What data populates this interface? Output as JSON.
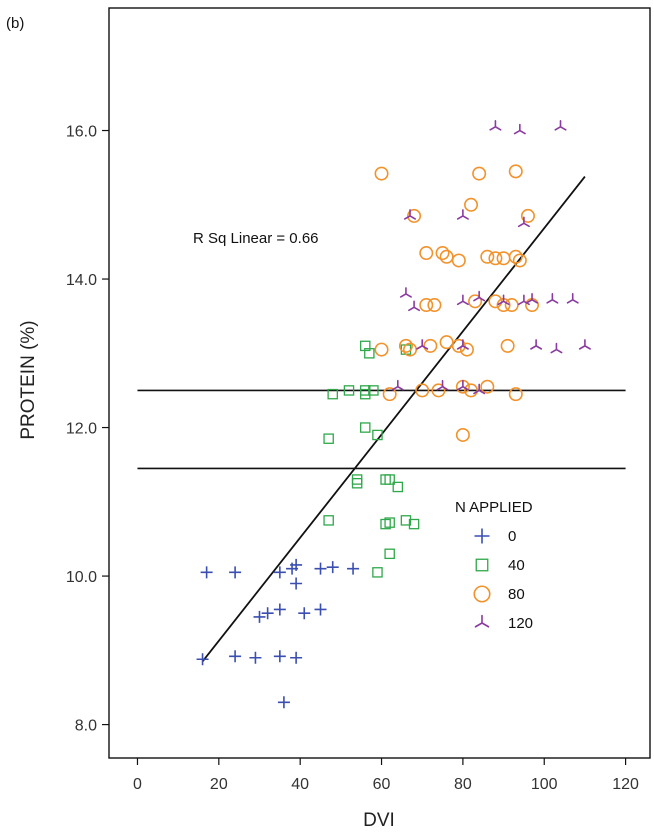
{
  "panel_label": "(b)",
  "annotation": "R Sq Linear = 0.66",
  "chart_data": {
    "type": "scatter",
    "title": "",
    "xlabel": "DVI",
    "ylabel": "PROTEIN (%)",
    "xlim": [
      -7,
      126
    ],
    "ylim": [
      7.55,
      17.65
    ],
    "xticks": [
      0,
      20,
      40,
      60,
      80,
      100,
      120
    ],
    "xtick_labels": [
      "0",
      "20",
      "40",
      "60",
      "80",
      "100",
      "120"
    ],
    "yticks": [
      8.0,
      10.0,
      12.0,
      14.0,
      16.0
    ],
    "ytick_labels": [
      "8.0",
      "10.0",
      "12.0",
      "14.0",
      "16.0"
    ],
    "grid": false,
    "legend": {
      "title": "N APPLIED",
      "placement": "right-middle"
    },
    "series": [
      {
        "name": "0",
        "marker": "plus",
        "color": "#3a4fb0",
        "points": [
          [
            17,
            10.05
          ],
          [
            24,
            10.05
          ],
          [
            35,
            10.05
          ],
          [
            38,
            10.1
          ],
          [
            39,
            9.9
          ],
          [
            39,
            10.15
          ],
          [
            45,
            10.1
          ],
          [
            48,
            10.12
          ],
          [
            53,
            10.1
          ],
          [
            30,
            9.45
          ],
          [
            32,
            9.5
          ],
          [
            35,
            9.55
          ],
          [
            41,
            9.5
          ],
          [
            45,
            9.55
          ],
          [
            16,
            8.88
          ],
          [
            24,
            8.92
          ],
          [
            29,
            8.9
          ],
          [
            35,
            8.92
          ],
          [
            39,
            8.9
          ],
          [
            36,
            8.3
          ]
        ]
      },
      {
        "name": "40",
        "marker": "square",
        "color": "#2fa84a",
        "points": [
          [
            56,
            13.1
          ],
          [
            57,
            13.0
          ],
          [
            66,
            13.05
          ],
          [
            52,
            12.5
          ],
          [
            56,
            12.5
          ],
          [
            56,
            12.45
          ],
          [
            58,
            12.5
          ],
          [
            48,
            12.45
          ],
          [
            56,
            12.0
          ],
          [
            59,
            11.9
          ],
          [
            47,
            11.85
          ],
          [
            54,
            11.3
          ],
          [
            54,
            11.25
          ],
          [
            61,
            11.3
          ],
          [
            62,
            11.3
          ],
          [
            64,
            11.2
          ],
          [
            47,
            10.75
          ],
          [
            61,
            10.7
          ],
          [
            62,
            10.72
          ],
          [
            66,
            10.75
          ],
          [
            68,
            10.7
          ],
          [
            62,
            10.3
          ],
          [
            59,
            10.05
          ]
        ]
      },
      {
        "name": "80",
        "marker": "circle",
        "color": "#f2922b",
        "points": [
          [
            60,
            15.42
          ],
          [
            84,
            15.42
          ],
          [
            93,
            15.45
          ],
          [
            68,
            14.85
          ],
          [
            82,
            15.0
          ],
          [
            96,
            14.85
          ],
          [
            71,
            14.35
          ],
          [
            75,
            14.35
          ],
          [
            76,
            14.3
          ],
          [
            79,
            14.25
          ],
          [
            86,
            14.3
          ],
          [
            88,
            14.28
          ],
          [
            90,
            14.28
          ],
          [
            93,
            14.3
          ],
          [
            94,
            14.25
          ],
          [
            71,
            13.65
          ],
          [
            73,
            13.65
          ],
          [
            83,
            13.7
          ],
          [
            88,
            13.7
          ],
          [
            90,
            13.65
          ],
          [
            92,
            13.65
          ],
          [
            97,
            13.65
          ],
          [
            60,
            13.05
          ],
          [
            66,
            13.1
          ],
          [
            67,
            13.05
          ],
          [
            72,
            13.1
          ],
          [
            76,
            13.15
          ],
          [
            79,
            13.1
          ],
          [
            81,
            13.05
          ],
          [
            91,
            13.1
          ],
          [
            62,
            12.45
          ],
          [
            70,
            12.5
          ],
          [
            74,
            12.5
          ],
          [
            80,
            12.55
          ],
          [
            82,
            12.5
          ],
          [
            86,
            12.55
          ],
          [
            93,
            12.45
          ],
          [
            80,
            11.9
          ]
        ]
      },
      {
        "name": "120",
        "marker": "tri",
        "color": "#8a3aa0",
        "points": [
          [
            88,
            16.05
          ],
          [
            94,
            16.0
          ],
          [
            104,
            16.05
          ],
          [
            67,
            14.85
          ],
          [
            80,
            14.85
          ],
          [
            95,
            14.75
          ],
          [
            66,
            13.8
          ],
          [
            68,
            13.62
          ],
          [
            80,
            13.7
          ],
          [
            84,
            13.75
          ],
          [
            90,
            13.7
          ],
          [
            95,
            13.7
          ],
          [
            97,
            13.72
          ],
          [
            102,
            13.72
          ],
          [
            107,
            13.72
          ],
          [
            70,
            13.1
          ],
          [
            80,
            13.1
          ],
          [
            98,
            13.1
          ],
          [
            103,
            13.05
          ],
          [
            110,
            13.1
          ],
          [
            64,
            12.55
          ],
          [
            75,
            12.55
          ],
          [
            80,
            12.55
          ],
          [
            84,
            12.5
          ]
        ]
      }
    ],
    "fit_line": {
      "points": [
        [
          16,
          8.85
        ],
        [
          110,
          15.38
        ]
      ]
    },
    "reference_lines": [
      12.5,
      11.45
    ]
  }
}
